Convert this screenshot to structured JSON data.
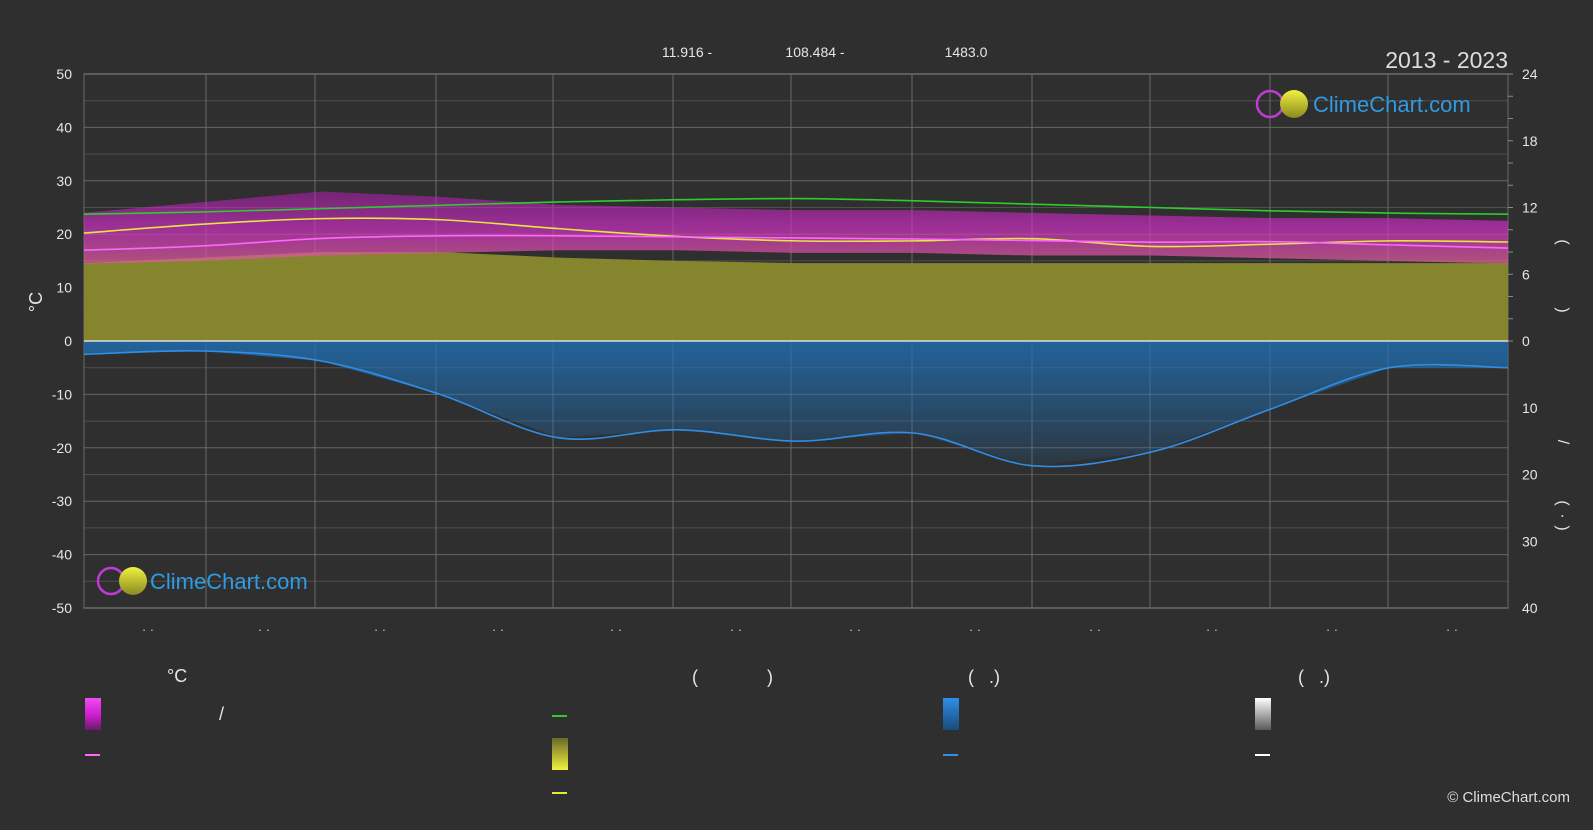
{
  "header": {
    "coords": [
      "11.916 -",
      "108.484 -",
      "1483.0"
    ],
    "period": "2013 - 2023"
  },
  "logo": {
    "text": "ClimeChart.com"
  },
  "copyright": "© ClimeChart.com",
  "left_axis_label": "°C",
  "right_axis_labels": [
    "(",
    ")",
    "(",
    ")",
    "/",
    "(",
    "·",
    ")"
  ],
  "month_ticks": [
    "· ·",
    "· ·",
    "· ·",
    "· ·",
    "· ·",
    "· ·",
    "· ·",
    "· ·",
    "· ·",
    "· ·",
    "· ·",
    "· ·"
  ],
  "legend": {
    "col1_header": "°C",
    "col1_slash": "/",
    "col2_header_open": "(",
    "col2_header_close": ")",
    "col3_header": "(   .)",
    "col4_header": "(   .)"
  },
  "colors": {
    "background": "#2f2f2f",
    "temp_range": "#d21fd2",
    "mean_temp": "#ff66ff",
    "daylight": "#2ecc2e",
    "sunshine": "#c8c83a",
    "sunshine_line": "#e6e640",
    "precip": "#1f6fb5",
    "precip_line": "#2f8fe8",
    "snow": "#ffffff",
    "grid": "#5a5a5a",
    "logo_text": "#2f9be0"
  },
  "chart_data": {
    "type": "area",
    "title": "",
    "x": [
      0,
      1,
      2,
      3,
      4,
      5,
      6,
      7,
      8,
      9,
      10,
      11,
      12
    ],
    "ylim_left": [
      -50,
      50
    ],
    "ylim_right_top": [
      0,
      24
    ],
    "ylim_right_bottom": [
      0,
      40
    ],
    "left_ticks": [
      50,
      40,
      30,
      20,
      10,
      0,
      -10,
      -20,
      -30,
      -40,
      -50
    ],
    "right_ticks_top": [
      24,
      18,
      12,
      6,
      0
    ],
    "right_ticks_bottom": [
      10,
      20,
      30,
      40
    ],
    "grid": true,
    "series": [
      {
        "key": "daylight",
        "axis": "hours",
        "values": [
          11.4,
          11.6,
          11.9,
          12.2,
          12.5,
          12.7,
          12.8,
          12.6,
          12.3,
          12.0,
          11.7,
          11.5,
          11.4
        ]
      },
      {
        "key": "sunshine",
        "axis": "hours",
        "values": [
          9.7,
          10.5,
          11.0,
          10.9,
          10.1,
          9.4,
          9.0,
          9.0,
          9.2,
          8.5,
          8.7,
          9.0,
          8.9
        ]
      },
      {
        "key": "mean_temp",
        "axis": "celsius",
        "values": [
          17.0,
          17.8,
          19.2,
          19.7,
          19.7,
          19.5,
          19.3,
          19.1,
          18.8,
          18.5,
          18.6,
          18.0,
          17.4
        ]
      },
      {
        "key": "precip",
        "axis": "mm",
        "values": [
          2.0,
          1.5,
          3.0,
          8.0,
          14.5,
          13.3,
          15.0,
          13.8,
          18.7,
          16.6,
          10.2,
          4.0,
          4.0
        ]
      },
      {
        "key": "temp_range_top",
        "axis": "celsius",
        "values": [
          24.0,
          26.0,
          28.0,
          27.0,
          25.5,
          25.0,
          24.5,
          24.5,
          24.0,
          23.5,
          23.0,
          23.0,
          22.5
        ]
      },
      {
        "key": "temp_range_bottom",
        "axis": "celsius",
        "values": [
          14.5,
          15.0,
          16.0,
          16.5,
          17.0,
          17.0,
          16.5,
          16.5,
          16.0,
          16.0,
          15.5,
          15.0,
          14.5
        ]
      },
      {
        "key": "sunshine_fill",
        "axis": "hours",
        "values": [
          7.0,
          7.5,
          8.0,
          8.0,
          7.5,
          7.2,
          7.0,
          7.0,
          7.0,
          7.0,
          7.0,
          7.0,
          7.0
        ]
      }
    ]
  }
}
